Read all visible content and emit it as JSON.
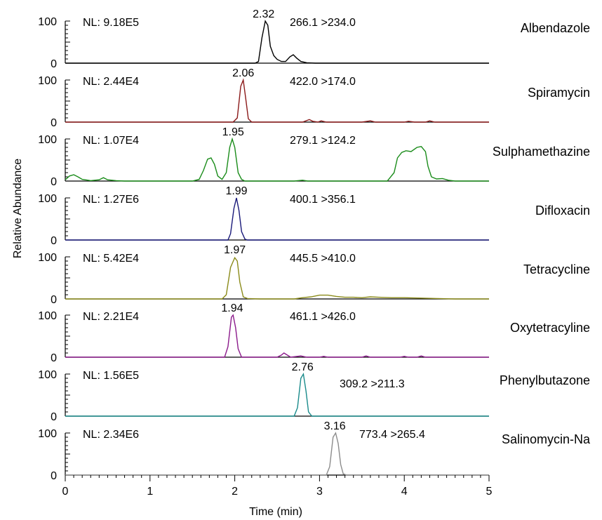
{
  "chart_data": {
    "type": "line",
    "xlabel": "Time (min)",
    "ylabel": "Relative Abundance",
    "xlim": [
      0,
      5
    ],
    "ylim": [
      0,
      100
    ],
    "x_ticks": [
      "0",
      "1",
      "2",
      "3",
      "4",
      "5"
    ],
    "y_tick_top": "100",
    "y_tick_bottom": "0",
    "panels": [
      {
        "name": "Albendazole",
        "nl": "NL: 9.18E5",
        "transition": "266.1 >234.0",
        "peak_label": "2.32",
        "peak_rt": 2.34,
        "color": "#000000",
        "points": [
          [
            0,
            0
          ],
          [
            2.24,
            0
          ],
          [
            2.28,
            4
          ],
          [
            2.32,
            60
          ],
          [
            2.36,
            100
          ],
          [
            2.39,
            90
          ],
          [
            2.42,
            40
          ],
          [
            2.46,
            18
          ],
          [
            2.5,
            9
          ],
          [
            2.55,
            4
          ],
          [
            2.6,
            4
          ],
          [
            2.65,
            15
          ],
          [
            2.69,
            20
          ],
          [
            2.73,
            12
          ],
          [
            2.78,
            4
          ],
          [
            2.85,
            1
          ],
          [
            2.95,
            0
          ],
          [
            5,
            0
          ]
        ]
      },
      {
        "name": "Spiramycin",
        "nl": "NL: 2.44E4",
        "transition": "422.0 >174.0",
        "peak_label": "2.06",
        "peak_rt": 2.1,
        "color": "#8b1a1a",
        "points": [
          [
            0,
            0
          ],
          [
            1.98,
            0
          ],
          [
            2.03,
            10
          ],
          [
            2.07,
            85
          ],
          [
            2.1,
            100
          ],
          [
            2.13,
            55
          ],
          [
            2.16,
            8
          ],
          [
            2.2,
            0
          ],
          [
            2.8,
            0
          ],
          [
            2.88,
            6
          ],
          [
            2.92,
            2
          ],
          [
            2.98,
            0
          ],
          [
            3.02,
            3
          ],
          [
            3.08,
            0
          ],
          [
            3.5,
            0
          ],
          [
            3.6,
            3
          ],
          [
            3.66,
            0
          ],
          [
            4.0,
            0
          ],
          [
            4.05,
            2
          ],
          [
            4.12,
            0
          ],
          [
            4.25,
            0
          ],
          [
            4.3,
            3
          ],
          [
            4.36,
            0
          ],
          [
            5,
            0
          ]
        ]
      },
      {
        "name": "Sulphamethazine",
        "nl": "NL: 1.07E4",
        "transition": "279.1 >124.2",
        "peak_label": "1.95",
        "peak_rt": 1.98,
        "color": "#1a8c1a",
        "points": [
          [
            0,
            3
          ],
          [
            0.05,
            12
          ],
          [
            0.1,
            15
          ],
          [
            0.15,
            10
          ],
          [
            0.2,
            4
          ],
          [
            0.3,
            1
          ],
          [
            0.4,
            3
          ],
          [
            0.45,
            8
          ],
          [
            0.5,
            3
          ],
          [
            0.6,
            1
          ],
          [
            0.7,
            0
          ],
          [
            1.5,
            0
          ],
          [
            1.58,
            4
          ],
          [
            1.63,
            25
          ],
          [
            1.68,
            52
          ],
          [
            1.72,
            55
          ],
          [
            1.76,
            40
          ],
          [
            1.8,
            12
          ],
          [
            1.85,
            4
          ],
          [
            1.9,
            20
          ],
          [
            1.94,
            80
          ],
          [
            1.97,
            100
          ],
          [
            2.0,
            80
          ],
          [
            2.04,
            20
          ],
          [
            2.08,
            4
          ],
          [
            2.12,
            0
          ],
          [
            2.7,
            0
          ],
          [
            2.8,
            2
          ],
          [
            2.86,
            0
          ],
          [
            3.0,
            0
          ],
          [
            3.6,
            0
          ],
          [
            3.8,
            0
          ],
          [
            3.88,
            20
          ],
          [
            3.92,
            55
          ],
          [
            3.97,
            68
          ],
          [
            4.02,
            72
          ],
          [
            4.08,
            70
          ],
          [
            4.15,
            80
          ],
          [
            4.2,
            82
          ],
          [
            4.25,
            70
          ],
          [
            4.28,
            35
          ],
          [
            4.32,
            10
          ],
          [
            4.38,
            5
          ],
          [
            4.45,
            6
          ],
          [
            4.52,
            2
          ],
          [
            4.6,
            0
          ],
          [
            5,
            0
          ]
        ]
      },
      {
        "name": "Difloxacin",
        "nl": "NL: 1.27E6",
        "transition": "400.1 >356.1",
        "peak_label": "1.99",
        "peak_rt": 2.02,
        "color": "#1a1a7a",
        "points": [
          [
            0,
            0
          ],
          [
            1.92,
            0
          ],
          [
            1.95,
            15
          ],
          [
            1.99,
            75
          ],
          [
            2.02,
            100
          ],
          [
            2.05,
            70
          ],
          [
            2.08,
            20
          ],
          [
            2.12,
            2
          ],
          [
            2.15,
            0
          ],
          [
            5,
            0
          ]
        ]
      },
      {
        "name": "Tetracycline",
        "nl": "NL: 5.42E4",
        "transition": "445.5 >410.0",
        "peak_label": "1.97",
        "peak_rt": 2.0,
        "color": "#8b8b1a",
        "points": [
          [
            0,
            0
          ],
          [
            1.85,
            0
          ],
          [
            1.9,
            10
          ],
          [
            1.95,
            75
          ],
          [
            2.0,
            98
          ],
          [
            2.03,
            90
          ],
          [
            2.06,
            40
          ],
          [
            2.1,
            5
          ],
          [
            2.15,
            1
          ],
          [
            2.3,
            0
          ],
          [
            2.7,
            0
          ],
          [
            2.8,
            3
          ],
          [
            2.9,
            5
          ],
          [
            3.0,
            9
          ],
          [
            3.1,
            9
          ],
          [
            3.2,
            6
          ],
          [
            3.3,
            4
          ],
          [
            3.4,
            4
          ],
          [
            3.5,
            3
          ],
          [
            3.6,
            5
          ],
          [
            3.7,
            4
          ],
          [
            3.85,
            3
          ],
          [
            4.0,
            3
          ],
          [
            4.2,
            2
          ],
          [
            4.4,
            1
          ],
          [
            4.6,
            0
          ],
          [
            5,
            0
          ]
        ]
      },
      {
        "name": "Oxytetracyline",
        "nl": "NL: 2.21E4",
        "transition": "461.1 >426.0",
        "peak_label": "1.94",
        "peak_rt": 1.97,
        "color": "#8b1a8b",
        "points": [
          [
            0,
            0
          ],
          [
            1.88,
            0
          ],
          [
            1.92,
            25
          ],
          [
            1.96,
            95
          ],
          [
            1.98,
            100
          ],
          [
            2.01,
            70
          ],
          [
            2.04,
            20
          ],
          [
            2.08,
            0
          ],
          [
            2.5,
            0
          ],
          [
            2.55,
            5
          ],
          [
            2.58,
            10
          ],
          [
            2.62,
            5
          ],
          [
            2.66,
            0
          ],
          [
            2.78,
            3
          ],
          [
            2.85,
            0
          ],
          [
            3.0,
            0
          ],
          [
            3.05,
            2
          ],
          [
            3.1,
            0
          ],
          [
            3.5,
            0
          ],
          [
            3.55,
            3
          ],
          [
            3.6,
            0
          ],
          [
            3.95,
            0
          ],
          [
            4.0,
            2
          ],
          [
            4.05,
            0
          ],
          [
            4.15,
            0
          ],
          [
            4.2,
            3
          ],
          [
            4.25,
            0
          ],
          [
            5,
            0
          ]
        ]
      },
      {
        "name": "Phenylbutazone",
        "nl": "NL: 1.56E5",
        "transition": "309.2 >211.3",
        "peak_label": "2.76",
        "peak_rt": 2.8,
        "color": "#1a8b8b",
        "points": [
          [
            0,
            0
          ],
          [
            2.7,
            0
          ],
          [
            2.74,
            20
          ],
          [
            2.78,
            90
          ],
          [
            2.81,
            100
          ],
          [
            2.84,
            60
          ],
          [
            2.87,
            10
          ],
          [
            2.91,
            0
          ],
          [
            5,
            0
          ]
        ]
      },
      {
        "name": "Salinomycin-Na",
        "nl": "NL: 2.34E6",
        "transition": "773.4 >265.4",
        "peak_label": "3.16",
        "peak_rt": 3.18,
        "color": "#8c8c8c",
        "points": [
          [
            0,
            0
          ],
          [
            3.08,
            0
          ],
          [
            3.12,
            20
          ],
          [
            3.16,
            90
          ],
          [
            3.19,
            100
          ],
          [
            3.22,
            75
          ],
          [
            3.25,
            25
          ],
          [
            3.28,
            3
          ],
          [
            3.32,
            0
          ],
          [
            5,
            0
          ]
        ]
      }
    ]
  }
}
